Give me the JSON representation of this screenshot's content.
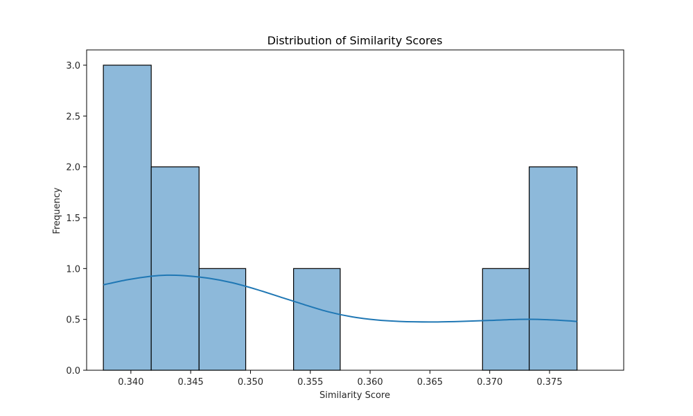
{
  "chart_data": {
    "type": "bar",
    "title": "Distribution of Similarity Scores",
    "xlabel": "Similarity Score",
    "ylabel": "Frequency",
    "xlim": [
      0.3363,
      0.3812
    ],
    "ylim": [
      0,
      3.15
    ],
    "x_ticks": [
      {
        "value": 0.34,
        "label": "0.340"
      },
      {
        "value": 0.345,
        "label": "0.345"
      },
      {
        "value": 0.35,
        "label": "0.350"
      },
      {
        "value": 0.355,
        "label": "0.355"
      },
      {
        "value": 0.36,
        "label": "0.360"
      },
      {
        "value": 0.365,
        "label": "0.365"
      },
      {
        "value": 0.37,
        "label": "0.370"
      },
      {
        "value": 0.375,
        "label": "0.375"
      }
    ],
    "y_ticks": [
      {
        "value": 0.0,
        "label": "0.0"
      },
      {
        "value": 0.5,
        "label": "0.5"
      },
      {
        "value": 1.0,
        "label": "1.0"
      },
      {
        "value": 1.5,
        "label": "1.5"
      },
      {
        "value": 2.0,
        "label": "2.0"
      },
      {
        "value": 2.5,
        "label": "2.5"
      },
      {
        "value": 3.0,
        "label": "3.0"
      }
    ],
    "bins": [
      {
        "start": 0.3377,
        "end": 0.3417,
        "count": 3
      },
      {
        "start": 0.3417,
        "end": 0.3457,
        "count": 2
      },
      {
        "start": 0.3457,
        "end": 0.3496,
        "count": 1
      },
      {
        "start": 0.3496,
        "end": 0.3536,
        "count": 0
      },
      {
        "start": 0.3536,
        "end": 0.3575,
        "count": 1
      },
      {
        "start": 0.3575,
        "end": 0.3615,
        "count": 0
      },
      {
        "start": 0.3615,
        "end": 0.3654,
        "count": 0
      },
      {
        "start": 0.3654,
        "end": 0.3694,
        "count": 0
      },
      {
        "start": 0.3694,
        "end": 0.3733,
        "count": 1
      },
      {
        "start": 0.3733,
        "end": 0.3773,
        "count": 2
      }
    ],
    "kde": {
      "x": [
        0.3377,
        0.3397,
        0.3417,
        0.343,
        0.3445,
        0.3465,
        0.3485,
        0.3505,
        0.3525,
        0.3545,
        0.3565,
        0.3585,
        0.3605,
        0.3625,
        0.365,
        0.3675,
        0.37,
        0.3725,
        0.374,
        0.376,
        0.3773
      ],
      "y": [
        0.84,
        0.89,
        0.925,
        0.935,
        0.93,
        0.905,
        0.86,
        0.795,
        0.72,
        0.645,
        0.575,
        0.525,
        0.495,
        0.48,
        0.475,
        0.48,
        0.49,
        0.5,
        0.5,
        0.49,
        0.48
      ]
    },
    "grid": false,
    "legend": "none",
    "colors": {
      "bar_fill": "#8db9da",
      "bar_edge": "#000000",
      "kde_line": "#1f77b4",
      "axis": "#000000"
    }
  }
}
